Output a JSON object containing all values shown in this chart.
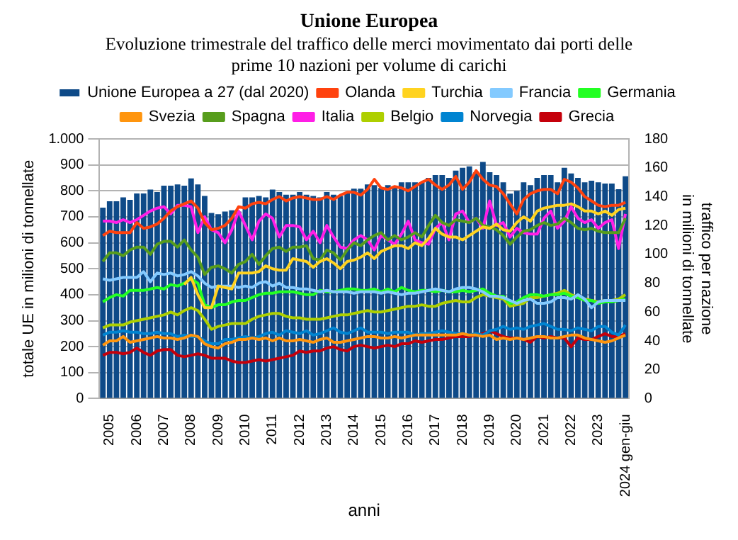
{
  "chart_data": {
    "type": "bar",
    "title": "Unione Europea",
    "subtitle": "Evoluzione trimestrale del traffico delle merci movimentato dai porti delle prime 10 nazioni per volume di carichi",
    "xlabel": "anni",
    "ylabel": "totale UE in milioni di tonnellate",
    "y2label": "traffico per nazione in milioni di tonnellate",
    "categories": [
      null,
      "2005",
      null,
      null,
      null,
      "2006",
      null,
      null,
      null,
      "2007",
      null,
      null,
      null,
      "2008",
      null,
      null,
      null,
      "2009",
      null,
      null,
      null,
      "2010",
      null,
      null,
      null,
      "2011",
      null,
      null,
      null,
      "2012",
      null,
      null,
      null,
      "2013",
      null,
      null,
      null,
      "2014",
      null,
      null,
      null,
      "2015",
      null,
      null,
      null,
      "2016",
      null,
      null,
      null,
      "2017",
      null,
      null,
      null,
      "2018",
      null,
      null,
      null,
      "2019",
      null,
      null,
      null,
      "2020",
      null,
      null,
      null,
      "2021",
      null,
      null,
      null,
      "2022",
      null,
      null,
      null,
      "2023",
      null,
      null,
      null,
      "2024 gen-giu"
    ],
    "ylim": [
      0,
      1000
    ],
    "yticks": [
      0,
      100,
      200,
      300,
      400,
      500,
      600,
      700,
      800,
      900,
      {
        "value": 1000,
        "label": "1.000"
      }
    ],
    "y2lim": [
      0,
      180
    ],
    "y2ticks": [
      0,
      20,
      40,
      60,
      80,
      100,
      120,
      140,
      160,
      180
    ],
    "grid": "y",
    "legend": "top",
    "marker": "none",
    "series": [
      {
        "name": "Unione Europea a 27 (dal 2020)",
        "color": "#0e4a88",
        "values": [
          735,
          760,
          760,
          775,
          765,
          790,
          790,
          805,
          795,
          820,
          820,
          825,
          820,
          848,
          825,
          780,
          715,
          710,
          720,
          725,
          720,
          775,
          775,
          780,
          775,
          805,
          795,
          785,
          785,
          795,
          785,
          780,
          775,
          795,
          785,
          780,
          795,
          808,
          808,
          825,
          822,
          811,
          822,
          817,
          833,
          833,
          833,
          833,
          850,
          861,
          861,
          850,
          878,
          889,
          894,
          872,
          911,
          872,
          861,
          833,
          789,
          800,
          833,
          822,
          850,
          861,
          861,
          833,
          889,
          867,
          850,
          833,
          839,
          833,
          828,
          828,
          806,
          856
        ]
      },
      {
        "name": "Olanda",
        "type": "line",
        "axis": "y2",
        "color": "#ff420e",
        "values": [
          113,
          116,
          115,
          115,
          115,
          122,
          118,
          119,
          121,
          125,
          130,
          133,
          135,
          137,
          132,
          122,
          117,
          118,
          120,
          125,
          133,
          132,
          135,
          136,
          135,
          138,
          140,
          137,
          139,
          140,
          139,
          138,
          138,
          140,
          138,
          141,
          143,
          143,
          141,
          145,
          152,
          146,
          145,
          147,
          146,
          144,
          147,
          150,
          152,
          148,
          145,
          148,
          154,
          145,
          150,
          158,
          152,
          148,
          147,
          142,
          135,
          128,
          138,
          142,
          144,
          145,
          145,
          142,
          152,
          150,
          146,
          140,
          137,
          134,
          133,
          134,
          134,
          136
        ]
      },
      {
        "name": "Turchia",
        "type": "line",
        "axis": "y2",
        "color": "#ffd320",
        "values": [
          null,
          null,
          null,
          null,
          null,
          null,
          null,
          null,
          null,
          null,
          null,
          null,
          79,
          84,
          72,
          63,
          63,
          78,
          77,
          76,
          87,
          87,
          87,
          88,
          92,
          90,
          89,
          89,
          97,
          96,
          95,
          91,
          95,
          97,
          94,
          90,
          95,
          96,
          98,
          101,
          97,
          102,
          104,
          106,
          106,
          104,
          108,
          106,
          111,
          118,
          114,
          112,
          112,
          110,
          113,
          116,
          119,
          118,
          121,
          117,
          116,
          122,
          126,
          123,
          130,
          132,
          133,
          134,
          134,
          135,
          133,
          130,
          130,
          128,
          130,
          127,
          131,
          132
        ]
      },
      {
        "name": "Francia",
        "type": "line",
        "axis": "y2",
        "color": "#83caff",
        "values": [
          83,
          82,
          83,
          84,
          84,
          84,
          88,
          81,
          87,
          86,
          87,
          85,
          86,
          88,
          85,
          80,
          77,
          78,
          78,
          78,
          77,
          78,
          77,
          80,
          81,
          78,
          80,
          77,
          77,
          76,
          76,
          75,
          74,
          75,
          74,
          74,
          74,
          73,
          74,
          74,
          74,
          73,
          74,
          73,
          72,
          73,
          73,
          74,
          75,
          76,
          75,
          74,
          76,
          77,
          77,
          76,
          74,
          71,
          71,
          70,
          68,
          66,
          68,
          69,
          66,
          66,
          67,
          70,
          70,
          69,
          72,
          69,
          63,
          67,
          68,
          68,
          68,
          68
        ]
      },
      {
        "name": "Germania",
        "type": "line",
        "axis": "y2",
        "color": "#23ff23",
        "values": [
          67,
          70,
          72,
          71,
          75,
          75,
          75,
          76,
          77,
          76,
          79,
          78,
          80,
          83,
          80,
          65,
          63,
          65,
          65,
          67,
          68,
          68,
          70,
          72,
          73,
          73,
          74,
          74,
          74,
          73,
          72,
          72,
          75,
          74,
          74,
          75,
          76,
          76,
          75,
          75,
          76,
          74,
          76,
          74,
          77,
          75,
          74,
          75,
          75,
          74,
          75,
          74,
          74,
          75,
          74,
          75,
          76,
          73,
          71,
          71,
          66,
          67,
          70,
          72,
          72,
          71,
          72,
          72,
          73,
          71,
          70,
          68,
          68,
          66,
          67,
          67,
          68,
          69
        ]
      },
      {
        "name": "Svezia",
        "type": "line",
        "axis": "y2",
        "color": "#ff950e",
        "values": [
          37,
          40,
          40,
          43,
          39,
          40,
          41,
          42,
          43,
          42,
          42,
          41,
          42,
          44,
          43,
          38,
          36,
          35,
          38,
          39,
          41,
          41,
          42,
          41,
          42,
          40,
          42,
          40,
          40,
          41,
          40,
          39,
          41,
          42,
          39,
          39,
          40,
          41,
          42,
          43,
          43,
          42,
          42,
          43,
          42,
          43,
          44,
          44,
          44,
          44,
          44,
          44,
          44,
          45,
          44,
          44,
          43,
          44,
          41,
          42,
          41,
          42,
          41,
          42,
          43,
          43,
          42,
          42,
          43,
          44,
          44,
          42,
          41,
          40,
          39,
          40,
          42,
          44
        ]
      },
      {
        "name": "Spagna",
        "type": "line",
        "axis": "y2",
        "color": "#579d1c",
        "values": [
          95,
          101,
          101,
          99,
          103,
          105,
          105,
          100,
          107,
          109,
          109,
          105,
          110,
          103,
          98,
          86,
          91,
          92,
          90,
          87,
          93,
          95,
          100,
          93,
          99,
          104,
          105,
          102,
          105,
          105,
          106,
          97,
          96,
          103,
          101,
          96,
          103,
          108,
          106,
          110,
          113,
          115,
          110,
          113,
          110,
          112,
          115,
          112,
          120,
          127,
          122,
          120,
          124,
          123,
          122,
          125,
          120,
          119,
          117,
          113,
          107,
          112,
          116,
          117,
          120,
          122,
          120,
          121,
          125,
          122,
          118,
          117,
          118,
          116,
          115,
          115,
          115,
          125
        ]
      },
      {
        "name": "Italia",
        "type": "line",
        "axis": "y2",
        "color": "#ff1ee6",
        "values": [
          123,
          123,
          122,
          124,
          122,
          124,
          127,
          130,
          132,
          133,
          128,
          134,
          134,
          133,
          115,
          126,
          117,
          115,
          108,
          117,
          130,
          120,
          110,
          123,
          128,
          125,
          112,
          120,
          120,
          119,
          110,
          116,
          108,
          120,
          112,
          105,
          104,
          110,
          113,
          110,
          103,
          113,
          110,
          107,
          114,
          123,
          110,
          108,
          107,
          118,
          122,
          110,
          128,
          130,
          122,
          125,
          118,
          137,
          120,
          122,
          112,
          118,
          115,
          114,
          114,
          125,
          130,
          118,
          123,
          133,
          125,
          122,
          124,
          118,
          122,
          124,
          104,
          128
        ]
      },
      {
        "name": "Belgio",
        "type": "line",
        "axis": "y2",
        "color": "#aecf00",
        "values": [
          49,
          51,
          51,
          51,
          53,
          54,
          55,
          56,
          57,
          58,
          60,
          58,
          61,
          63,
          61,
          55,
          48,
          50,
          51,
          52,
          52,
          52,
          55,
          57,
          58,
          59,
          59,
          57,
          56,
          56,
          55,
          55,
          55,
          56,
          57,
          58,
          58,
          59,
          60,
          61,
          60,
          60,
          61,
          62,
          63,
          64,
          64,
          65,
          64,
          64,
          66,
          67,
          68,
          67,
          67,
          70,
          72,
          71,
          70,
          69,
          64,
          65,
          66,
          70,
          70,
          71,
          72,
          73,
          75,
          72,
          70,
          69,
          68,
          67,
          68,
          68,
          69,
          72
        ]
      },
      {
        "name": "Norvegia",
        "type": "line",
        "axis": "y2",
        "color": "#0084d1",
        "values": [
          44,
          46,
          46,
          47,
          46,
          46,
          45,
          45,
          46,
          45,
          45,
          43,
          44,
          43,
          43,
          40,
          38,
          38,
          41,
          41,
          42,
          43,
          42,
          43,
          45,
          46,
          44,
          47,
          46,
          45,
          47,
          44,
          45,
          47,
          49,
          46,
          45,
          47,
          49,
          46,
          46,
          46,
          45,
          46,
          46,
          46,
          44,
          45,
          45,
          46,
          47,
          46,
          45,
          45,
          44,
          45,
          44,
          47,
          48,
          50,
          48,
          49,
          48,
          50,
          51,
          52,
          50,
          48,
          48,
          47,
          49,
          48,
          47,
          50,
          50,
          46,
          44,
          51
        ]
      },
      {
        "name": "Grecia",
        "type": "line",
        "axis": "y2",
        "color": "#c5000b",
        "values": [
          30,
          32,
          32,
          31,
          32,
          35,
          32,
          30,
          33,
          34,
          34,
          30,
          29,
          30,
          31,
          30,
          28,
          28,
          28,
          26,
          25,
          25,
          26,
          27,
          26,
          27,
          28,
          29,
          30,
          33,
          32,
          33,
          33,
          35,
          36,
          34,
          33,
          36,
          37,
          36,
          35,
          36,
          37,
          36,
          38,
          38,
          40,
          39,
          40,
          41,
          41,
          42,
          43,
          43,
          43,
          44,
          45,
          47,
          45,
          43,
          42,
          42,
          41,
          39,
          43,
          42,
          43,
          42,
          42,
          36,
          42,
          41,
          41,
          43,
          45,
          43,
          43,
          45
        ]
      }
    ]
  }
}
